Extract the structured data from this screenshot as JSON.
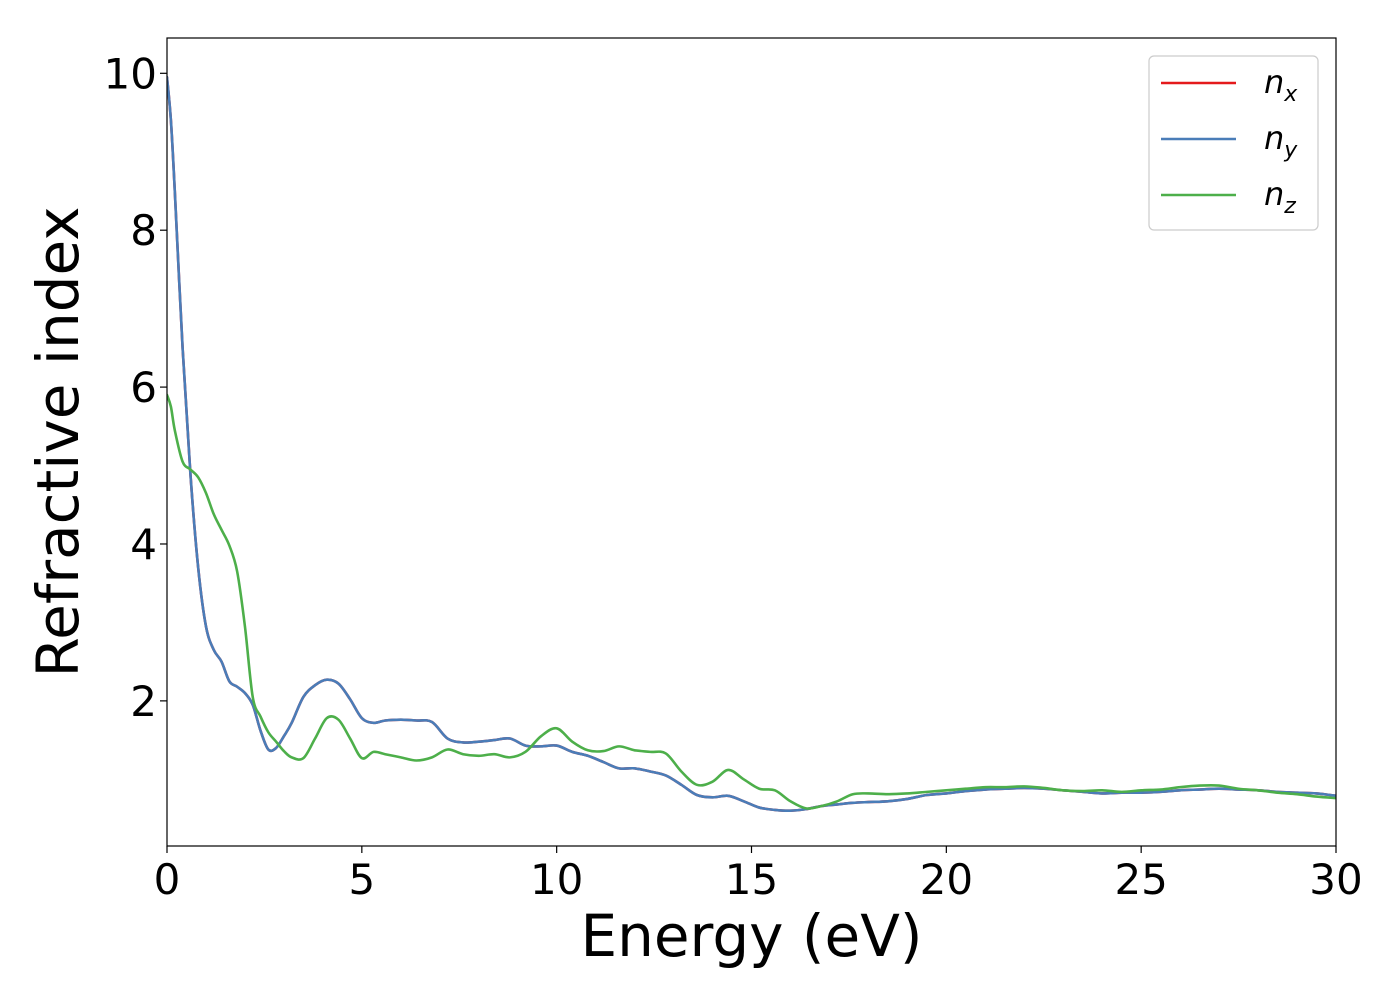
{
  "chart_data": {
    "type": "line",
    "xlabel": "Energy (eV)",
    "ylabel": "Refractive index",
    "xlim": [
      0,
      30
    ],
    "ylim": [
      0.15,
      10.45
    ],
    "xticks": [
      0,
      5,
      10,
      15,
      20,
      25,
      30
    ],
    "yticks": [
      2,
      4,
      6,
      8,
      10
    ],
    "xtick_labels": [
      "0",
      "5",
      "10",
      "15",
      "20",
      "25",
      "30"
    ],
    "ytick_labels": [
      "2",
      "4",
      "6",
      "8",
      "10"
    ],
    "grid": false,
    "legend_position": "top-right",
    "series": [
      {
        "name": "n",
        "subscript": "x",
        "color": "#e41a1c",
        "x": [
          0,
          0.1,
          0.2,
          0.4,
          0.6,
          0.8,
          1.0,
          1.2,
          1.4,
          1.6,
          1.8,
          2.0,
          2.2,
          2.4,
          2.6,
          2.8,
          3.0,
          3.2,
          3.5,
          3.8,
          4.1,
          4.4,
          4.7,
          5.0,
          5.3,
          5.6,
          6.0,
          6.4,
          6.8,
          7.2,
          7.6,
          8.0,
          8.4,
          8.8,
          9.2,
          9.6,
          10.0,
          10.4,
          10.8,
          11.2,
          11.6,
          12.0,
          12.4,
          12.8,
          13.2,
          13.6,
          14.0,
          14.4,
          14.8,
          15.2,
          15.6,
          16.0,
          16.4,
          16.8,
          17.2,
          17.6,
          18.0,
          18.5,
          19.0,
          19.5,
          20.0,
          20.5,
          21.0,
          21.5,
          22.0,
          22.5,
          23.0,
          23.5,
          24.0,
          24.5,
          25.0,
          25.5,
          26.0,
          26.5,
          27.0,
          27.5,
          28.0,
          28.5,
          29.0,
          29.5,
          30.0
        ],
        "y": [
          9.95,
          9.4,
          8.5,
          6.5,
          4.9,
          3.7,
          2.95,
          2.65,
          2.5,
          2.25,
          2.18,
          2.1,
          1.95,
          1.62,
          1.38,
          1.4,
          1.55,
          1.72,
          2.05,
          2.2,
          2.27,
          2.22,
          2.02,
          1.78,
          1.72,
          1.75,
          1.76,
          1.75,
          1.73,
          1.52,
          1.47,
          1.48,
          1.5,
          1.52,
          1.43,
          1.42,
          1.43,
          1.35,
          1.3,
          1.22,
          1.14,
          1.14,
          1.1,
          1.05,
          0.93,
          0.8,
          0.77,
          0.79,
          0.72,
          0.64,
          0.61,
          0.6,
          0.62,
          0.66,
          0.68,
          0.7,
          0.71,
          0.72,
          0.75,
          0.8,
          0.82,
          0.85,
          0.87,
          0.88,
          0.89,
          0.88,
          0.86,
          0.84,
          0.82,
          0.83,
          0.83,
          0.84,
          0.86,
          0.87,
          0.88,
          0.87,
          0.86,
          0.84,
          0.83,
          0.82,
          0.79
        ]
      },
      {
        "name": "n",
        "subscript": "y",
        "color": "#4a7db8",
        "x": [
          0,
          0.1,
          0.2,
          0.4,
          0.6,
          0.8,
          1.0,
          1.2,
          1.4,
          1.6,
          1.8,
          2.0,
          2.2,
          2.4,
          2.6,
          2.8,
          3.0,
          3.2,
          3.5,
          3.8,
          4.1,
          4.4,
          4.7,
          5.0,
          5.3,
          5.6,
          6.0,
          6.4,
          6.8,
          7.2,
          7.6,
          8.0,
          8.4,
          8.8,
          9.2,
          9.6,
          10.0,
          10.4,
          10.8,
          11.2,
          11.6,
          12.0,
          12.4,
          12.8,
          13.2,
          13.6,
          14.0,
          14.4,
          14.8,
          15.2,
          15.6,
          16.0,
          16.4,
          16.8,
          17.2,
          17.6,
          18.0,
          18.5,
          19.0,
          19.5,
          20.0,
          20.5,
          21.0,
          21.5,
          22.0,
          22.5,
          23.0,
          23.5,
          24.0,
          24.5,
          25.0,
          25.5,
          26.0,
          26.5,
          27.0,
          27.5,
          28.0,
          28.5,
          29.0,
          29.5,
          30.0
        ],
        "y": [
          9.95,
          9.4,
          8.5,
          6.5,
          4.9,
          3.7,
          2.95,
          2.65,
          2.5,
          2.25,
          2.18,
          2.1,
          1.95,
          1.62,
          1.38,
          1.4,
          1.55,
          1.72,
          2.05,
          2.2,
          2.27,
          2.22,
          2.02,
          1.78,
          1.72,
          1.75,
          1.76,
          1.75,
          1.73,
          1.52,
          1.47,
          1.48,
          1.5,
          1.52,
          1.43,
          1.42,
          1.43,
          1.35,
          1.3,
          1.22,
          1.14,
          1.14,
          1.1,
          1.05,
          0.93,
          0.8,
          0.77,
          0.79,
          0.72,
          0.64,
          0.61,
          0.6,
          0.62,
          0.66,
          0.68,
          0.7,
          0.71,
          0.72,
          0.75,
          0.8,
          0.82,
          0.85,
          0.87,
          0.88,
          0.89,
          0.88,
          0.86,
          0.84,
          0.82,
          0.83,
          0.83,
          0.84,
          0.86,
          0.87,
          0.88,
          0.87,
          0.86,
          0.84,
          0.83,
          0.82,
          0.79
        ]
      },
      {
        "name": "n",
        "subscript": "z",
        "color": "#4daf4a",
        "x": [
          0,
          0.1,
          0.2,
          0.4,
          0.6,
          0.8,
          1.0,
          1.2,
          1.4,
          1.6,
          1.8,
          2.0,
          2.2,
          2.4,
          2.6,
          2.8,
          3.0,
          3.2,
          3.5,
          3.8,
          4.1,
          4.4,
          4.7,
          5.0,
          5.3,
          5.6,
          6.0,
          6.4,
          6.8,
          7.2,
          7.6,
          8.0,
          8.4,
          8.8,
          9.2,
          9.6,
          10.0,
          10.4,
          10.8,
          11.2,
          11.6,
          12.0,
          12.4,
          12.8,
          13.2,
          13.6,
          14.0,
          14.4,
          14.8,
          15.2,
          15.6,
          16.0,
          16.4,
          16.8,
          17.2,
          17.6,
          18.0,
          18.5,
          19.0,
          19.5,
          20.0,
          20.5,
          21.0,
          21.5,
          22.0,
          22.5,
          23.0,
          23.5,
          24.0,
          24.5,
          25.0,
          25.5,
          26.0,
          26.5,
          27.0,
          27.5,
          28.0,
          28.5,
          29.0,
          29.5,
          30.0
        ],
        "y": [
          5.9,
          5.75,
          5.45,
          5.05,
          4.95,
          4.85,
          4.65,
          4.38,
          4.18,
          3.98,
          3.65,
          2.95,
          2.05,
          1.8,
          1.6,
          1.48,
          1.36,
          1.28,
          1.27,
          1.52,
          1.78,
          1.76,
          1.52,
          1.27,
          1.35,
          1.32,
          1.28,
          1.24,
          1.28,
          1.38,
          1.32,
          1.3,
          1.32,
          1.28,
          1.35,
          1.55,
          1.65,
          1.48,
          1.37,
          1.36,
          1.42,
          1.37,
          1.35,
          1.33,
          1.1,
          0.93,
          0.97,
          1.12,
          1.0,
          0.88,
          0.86,
          0.72,
          0.63,
          0.66,
          0.72,
          0.81,
          0.82,
          0.81,
          0.82,
          0.84,
          0.86,
          0.88,
          0.9,
          0.9,
          0.91,
          0.89,
          0.86,
          0.85,
          0.86,
          0.84,
          0.86,
          0.87,
          0.9,
          0.92,
          0.92,
          0.88,
          0.86,
          0.83,
          0.81,
          0.78,
          0.76
        ]
      }
    ]
  }
}
